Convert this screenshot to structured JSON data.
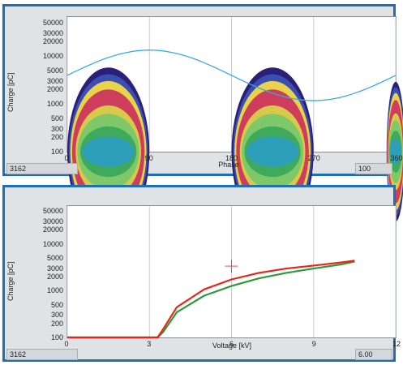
{
  "colors": {
    "frame": "#1e6fb8",
    "sine": "#3aa8e6",
    "trace_red": "#e8241a",
    "trace_green": "#2a9a3a",
    "marker": "#e05050"
  },
  "top_panel": {
    "y_axis_title": "Charge [pC]",
    "x_axis_title": "Phase",
    "y_ticks": [
      "50000",
      "30000",
      "20000",
      "10000",
      "5000",
      "3000",
      "2000",
      "1000",
      "500",
      "300",
      "200",
      "100"
    ],
    "x_ticks": [
      "0",
      "90",
      "180",
      "270",
      "360"
    ],
    "status_left": "3162",
    "status_right": "100"
  },
  "bottom_panel": {
    "y_axis_title": "Charge [pC]",
    "x_axis_title": "Voltage [kV]",
    "y_ticks": [
      "50000",
      "30000",
      "20000",
      "10000",
      "5000",
      "3000",
      "2000",
      "1000",
      "500",
      "300",
      "200",
      "100"
    ],
    "x_ticks": [
      "0",
      "3",
      "6",
      "9",
      "12"
    ],
    "status_left": "3162",
    "status_right": "6.00"
  },
  "chart_data": [
    {
      "type": "heatmap",
      "xlabel": "Phase",
      "ylabel": "Charge [pC]",
      "xlim": [
        0,
        360
      ],
      "ylim": [
        100,
        70000
      ],
      "y_scale": "log",
      "grid": true,
      "clusters": [
        {
          "phase_start": 0,
          "phase_end": 90,
          "peak_phase": 45,
          "peak_charge": 6000
        },
        {
          "phase_start": 180,
          "phase_end": 270,
          "peak_phase": 225,
          "peak_charge": 6000
        },
        {
          "phase_start": 350,
          "phase_end": 360,
          "peak_phase": 360,
          "peak_charge": 3000
        }
      ],
      "reference_sine": {
        "min_charge": 1200,
        "max_charge": 14000,
        "peak_phase": 90
      }
    },
    {
      "type": "line",
      "xlabel": "Voltage [kV]",
      "ylabel": "Charge [pC]",
      "xlim": [
        0,
        12
      ],
      "ylim": [
        100,
        70000
      ],
      "y_scale": "log",
      "grid": true,
      "series": [
        {
          "x": [
            0,
            3.3,
            3.5,
            4,
            5,
            6,
            7,
            8,
            9,
            10,
            10.5
          ],
          "y": [
            100,
            100,
            150,
            450,
            1100,
            1800,
            2500,
            3100,
            3600,
            4200,
            4600
          ]
        },
        {
          "x": [
            0,
            3.3,
            3.5,
            4,
            5,
            6,
            7,
            8,
            9,
            10,
            10.5
          ],
          "y": [
            100,
            100,
            130,
            350,
            800,
            1300,
            1900,
            2500,
            3100,
            3800,
            4400
          ]
        }
      ],
      "cursor": {
        "x": 6,
        "y": 3500
      }
    }
  ]
}
